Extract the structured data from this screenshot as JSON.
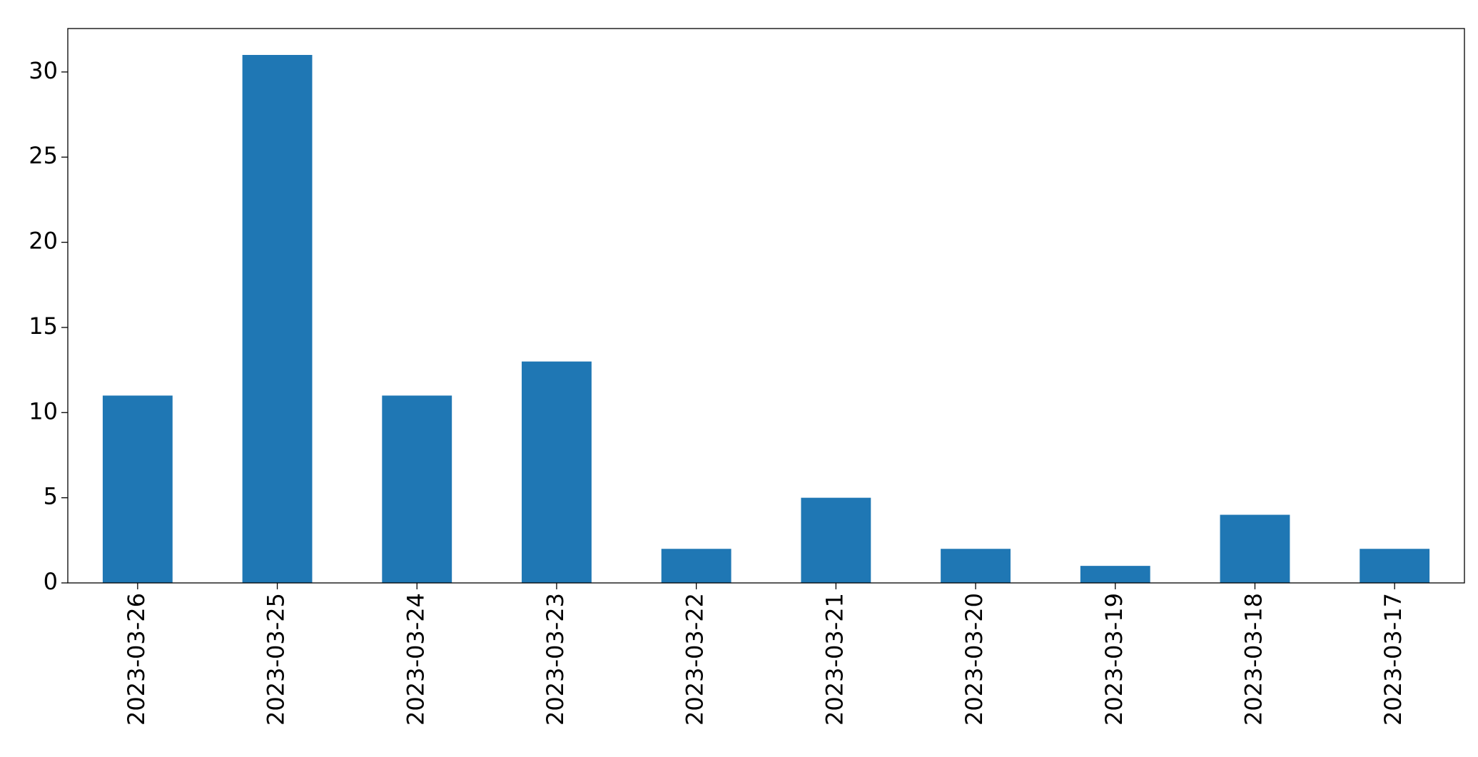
{
  "chart_data": {
    "type": "bar",
    "categories": [
      "2023-03-26",
      "2023-03-25",
      "2023-03-24",
      "2023-03-23",
      "2023-03-22",
      "2023-03-21",
      "2023-03-20",
      "2023-03-19",
      "2023-03-18",
      "2023-03-17"
    ],
    "values": [
      11,
      31,
      11,
      13,
      2,
      5,
      2,
      1,
      4,
      2
    ],
    "color": "#1f77b4",
    "ylim": [
      0,
      32.55
    ],
    "yticks": [
      0,
      5,
      10,
      15,
      20,
      25,
      30
    ],
    "grid": false
  }
}
